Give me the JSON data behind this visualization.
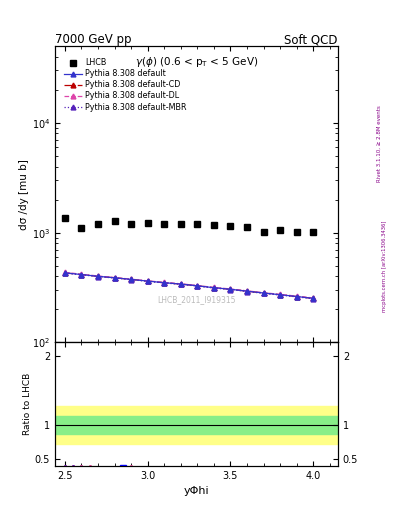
{
  "title_left": "7000 GeV pp",
  "title_right": "Soft QCD",
  "subplot_title": "γ(φ) (0.6 < p$_T$ < 5 GeV)",
  "ylabel_main": "dσ /dy [mu b]",
  "ylabel_ratio": "Ratio to LHCB",
  "xlabel": "yΦhi",
  "right_label": "Rivet 3.1.10, ≥ 2.8M events",
  "right_label2": "mcplots.cern.ch [arXiv:1306.3436]",
  "watermark": "LHCB_2011_I919315",
  "xlim": [
    2.44,
    4.15
  ],
  "ylim_main": [
    100,
    50000
  ],
  "ylim_ratio": [
    0.4,
    2.2
  ],
  "lhcb_x": [
    2.5,
    2.6,
    2.7,
    2.8,
    2.9,
    3.0,
    3.1,
    3.2,
    3.3,
    3.4,
    3.5,
    3.6,
    3.7,
    3.8,
    3.9,
    4.0
  ],
  "lhcb_y": [
    1350,
    1100,
    1200,
    1280,
    1200,
    1220,
    1200,
    1210,
    1200,
    1180,
    1160,
    1130,
    1020,
    1060,
    1010,
    1020
  ],
  "pythia_x": [
    2.5,
    2.6,
    2.7,
    2.8,
    2.9,
    3.0,
    3.1,
    3.2,
    3.3,
    3.4,
    3.5,
    3.6,
    3.7,
    3.8,
    3.9,
    4.0
  ],
  "pythia_default_y": [
    430,
    415,
    400,
    388,
    375,
    362,
    350,
    340,
    328,
    315,
    305,
    293,
    282,
    272,
    262,
    252
  ],
  "pythia_cd_y": [
    430,
    415,
    400,
    388,
    375,
    362,
    350,
    340,
    328,
    315,
    305,
    293,
    282,
    272,
    262,
    252
  ],
  "pythia_dl_y": [
    435,
    418,
    403,
    390,
    377,
    364,
    352,
    342,
    330,
    317,
    307,
    295,
    284,
    274,
    264,
    254
  ],
  "pythia_mbr_y": [
    428,
    413,
    398,
    386,
    373,
    360,
    348,
    338,
    326,
    313,
    303,
    291,
    280,
    270,
    260,
    250
  ],
  "ratio_x": [
    2.5,
    2.55,
    2.6,
    2.65,
    2.7,
    2.75,
    2.8,
    2.85,
    2.9
  ],
  "ratio_default_y": [
    0.38,
    0.38,
    0.38,
    0.375,
    0.37,
    0.37,
    0.37,
    0.37,
    0.375
  ],
  "ratio_cd_y": [
    0.38,
    0.38,
    0.38,
    0.378,
    0.372,
    0.372,
    0.372,
    0.372,
    0.377
  ],
  "ratio_dl_y": [
    0.385,
    0.385,
    0.382,
    0.38,
    0.374,
    0.374,
    0.374,
    0.374,
    0.379
  ],
  "ratio_mbr_y": [
    0.378,
    0.378,
    0.376,
    0.373,
    0.369,
    0.369,
    0.369,
    0.369,
    0.374
  ],
  "lhcb_ratio_x": [
    2.85
  ],
  "lhcb_ratio_y": [
    0.37
  ],
  "green_band_lo": 0.87,
  "green_band_hi": 1.13,
  "yellow_band_lo": 0.72,
  "yellow_band_hi": 1.28,
  "color_default": "#3333cc",
  "color_cd": "#bb0000",
  "color_dl": "#dd44aa",
  "color_mbr": "#5522bb",
  "legend_labels": [
    "LHCB",
    "Pythia 8.308 default",
    "Pythia 8.308 default-CD",
    "Pythia 8.308 default-DL",
    "Pythia 8.308 default-MBR"
  ]
}
